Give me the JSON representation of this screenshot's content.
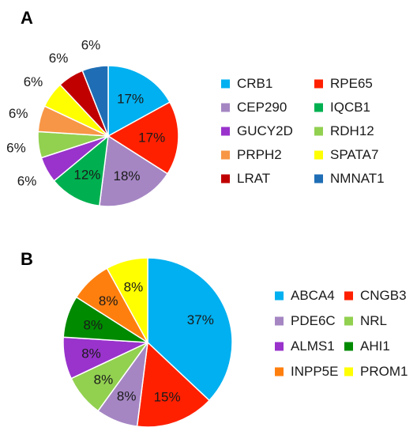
{
  "chart_data": [
    {
      "type": "pie",
      "panel": "A",
      "title": "",
      "labels": [
        "CRB1",
        "RPE65",
        "CEP290",
        "IQCB1",
        "GUCY2D",
        "RDH12",
        "PRPH2",
        "SPATA7",
        "LRAT",
        "NMNAT1"
      ],
      "values": [
        17,
        17,
        18,
        12,
        6,
        6,
        6,
        6,
        6,
        6
      ],
      "colors": [
        "#00B0F0",
        "#FF2000",
        "#A586C3",
        "#00B050",
        "#9933CC",
        "#92D050",
        "#F79646",
        "#FFFF00",
        "#C00000",
        "#1F6EB5"
      ],
      "slice_order": [
        "CRB1",
        "RPE65",
        "CEP290",
        "IQCB1",
        "GUCY2D",
        "RDH12",
        "PRPH2",
        "SPATA7",
        "LRAT",
        "NMNAT1"
      ],
      "data_labels": [
        "17%",
        "17%",
        "18%",
        "12%",
        "6%",
        "6%",
        "6%",
        "6%",
        "6%",
        "6%"
      ],
      "legend_placement": "right"
    },
    {
      "type": "pie",
      "panel": "B",
      "title": "",
      "labels": [
        "ABCA4",
        "CNGB3",
        "PDE6C",
        "NRL",
        "ALMS1",
        "AHI1",
        "INPP5E",
        "PROM1"
      ],
      "values": [
        37,
        15,
        8,
        8,
        8,
        8,
        8,
        8
      ],
      "colors": [
        "#00B0F0",
        "#FF2000",
        "#A586C3",
        "#92D050",
        "#9933CC",
        "#008A00",
        "#FF7F0E",
        "#FFFF00"
      ],
      "slice_order": [
        "ABCA4",
        "CNGB3",
        "PDE6C",
        "NRL",
        "ALMS1",
        "AHI1",
        "INPP5E",
        "PROM1"
      ],
      "data_labels": [
        "37%",
        "15%",
        "8%",
        "8%",
        "8%",
        "8%",
        "8%",
        "8%"
      ],
      "legend_placement": "right"
    }
  ],
  "panel_letters": {
    "a": "A",
    "b": "B"
  }
}
